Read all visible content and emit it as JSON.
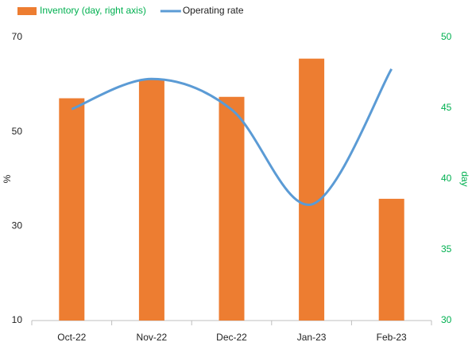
{
  "chart_data": {
    "type": "bar_line",
    "categories": [
      "Oct-22",
      "Nov-22",
      "Dec-22",
      "Jan-23",
      "Feb-23"
    ],
    "series": [
      {
        "name": "Inventory (day, right axis)",
        "color": "#ed7d31",
        "axis": "y2",
        "type": "bar",
        "values": [
          45.7,
          47.0,
          45.8,
          48.5,
          38.6
        ]
      },
      {
        "name": "Operating rate",
        "color": "#5b9bd5",
        "axis": "y",
        "type": "line",
        "values": [
          54.8,
          61.2,
          54.7,
          34.6,
          63.3
        ]
      }
    ],
    "ylabel": "%",
    "y2label": "day",
    "ylim": [
      10,
      70
    ],
    "yticks": [
      10,
      30,
      50,
      70
    ],
    "y2lim": [
      30,
      50
    ],
    "y2ticks": [
      30,
      35,
      40,
      45,
      50
    ],
    "legend": "top"
  }
}
